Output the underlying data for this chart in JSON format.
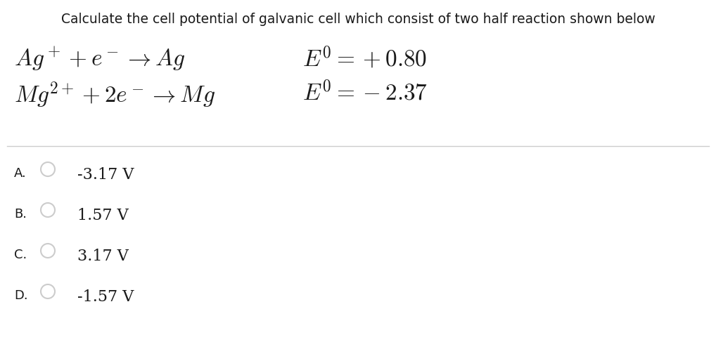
{
  "background_color": "#ffffff",
  "title": "Calculate the cell potential of galvanic cell which consist of two half reaction shown below",
  "title_fontsize": 13.5,
  "title_color": "#1a1a1a",
  "reaction1_latex": "$Ag^+ + e^- \\rightarrow Ag$",
  "reaction2_latex": "$Mg^{2+} + 2e^- \\rightarrow Mg$",
  "e1_latex": "$E^0 = +0.80$",
  "e2_latex": "$E^0 = -2.37$",
  "reaction_fontsize": 24,
  "options_label": [
    "A.",
    "B.",
    "C.",
    "D."
  ],
  "options_text": [
    "-3.17 V",
    "1.57 V",
    "3.17 V",
    "-1.57 V"
  ],
  "options_fontsize": 16,
  "label_fontsize": 13,
  "circle_color": "#cccccc",
  "text_color": "#1a1a1a",
  "separator_color": "#cccccc"
}
